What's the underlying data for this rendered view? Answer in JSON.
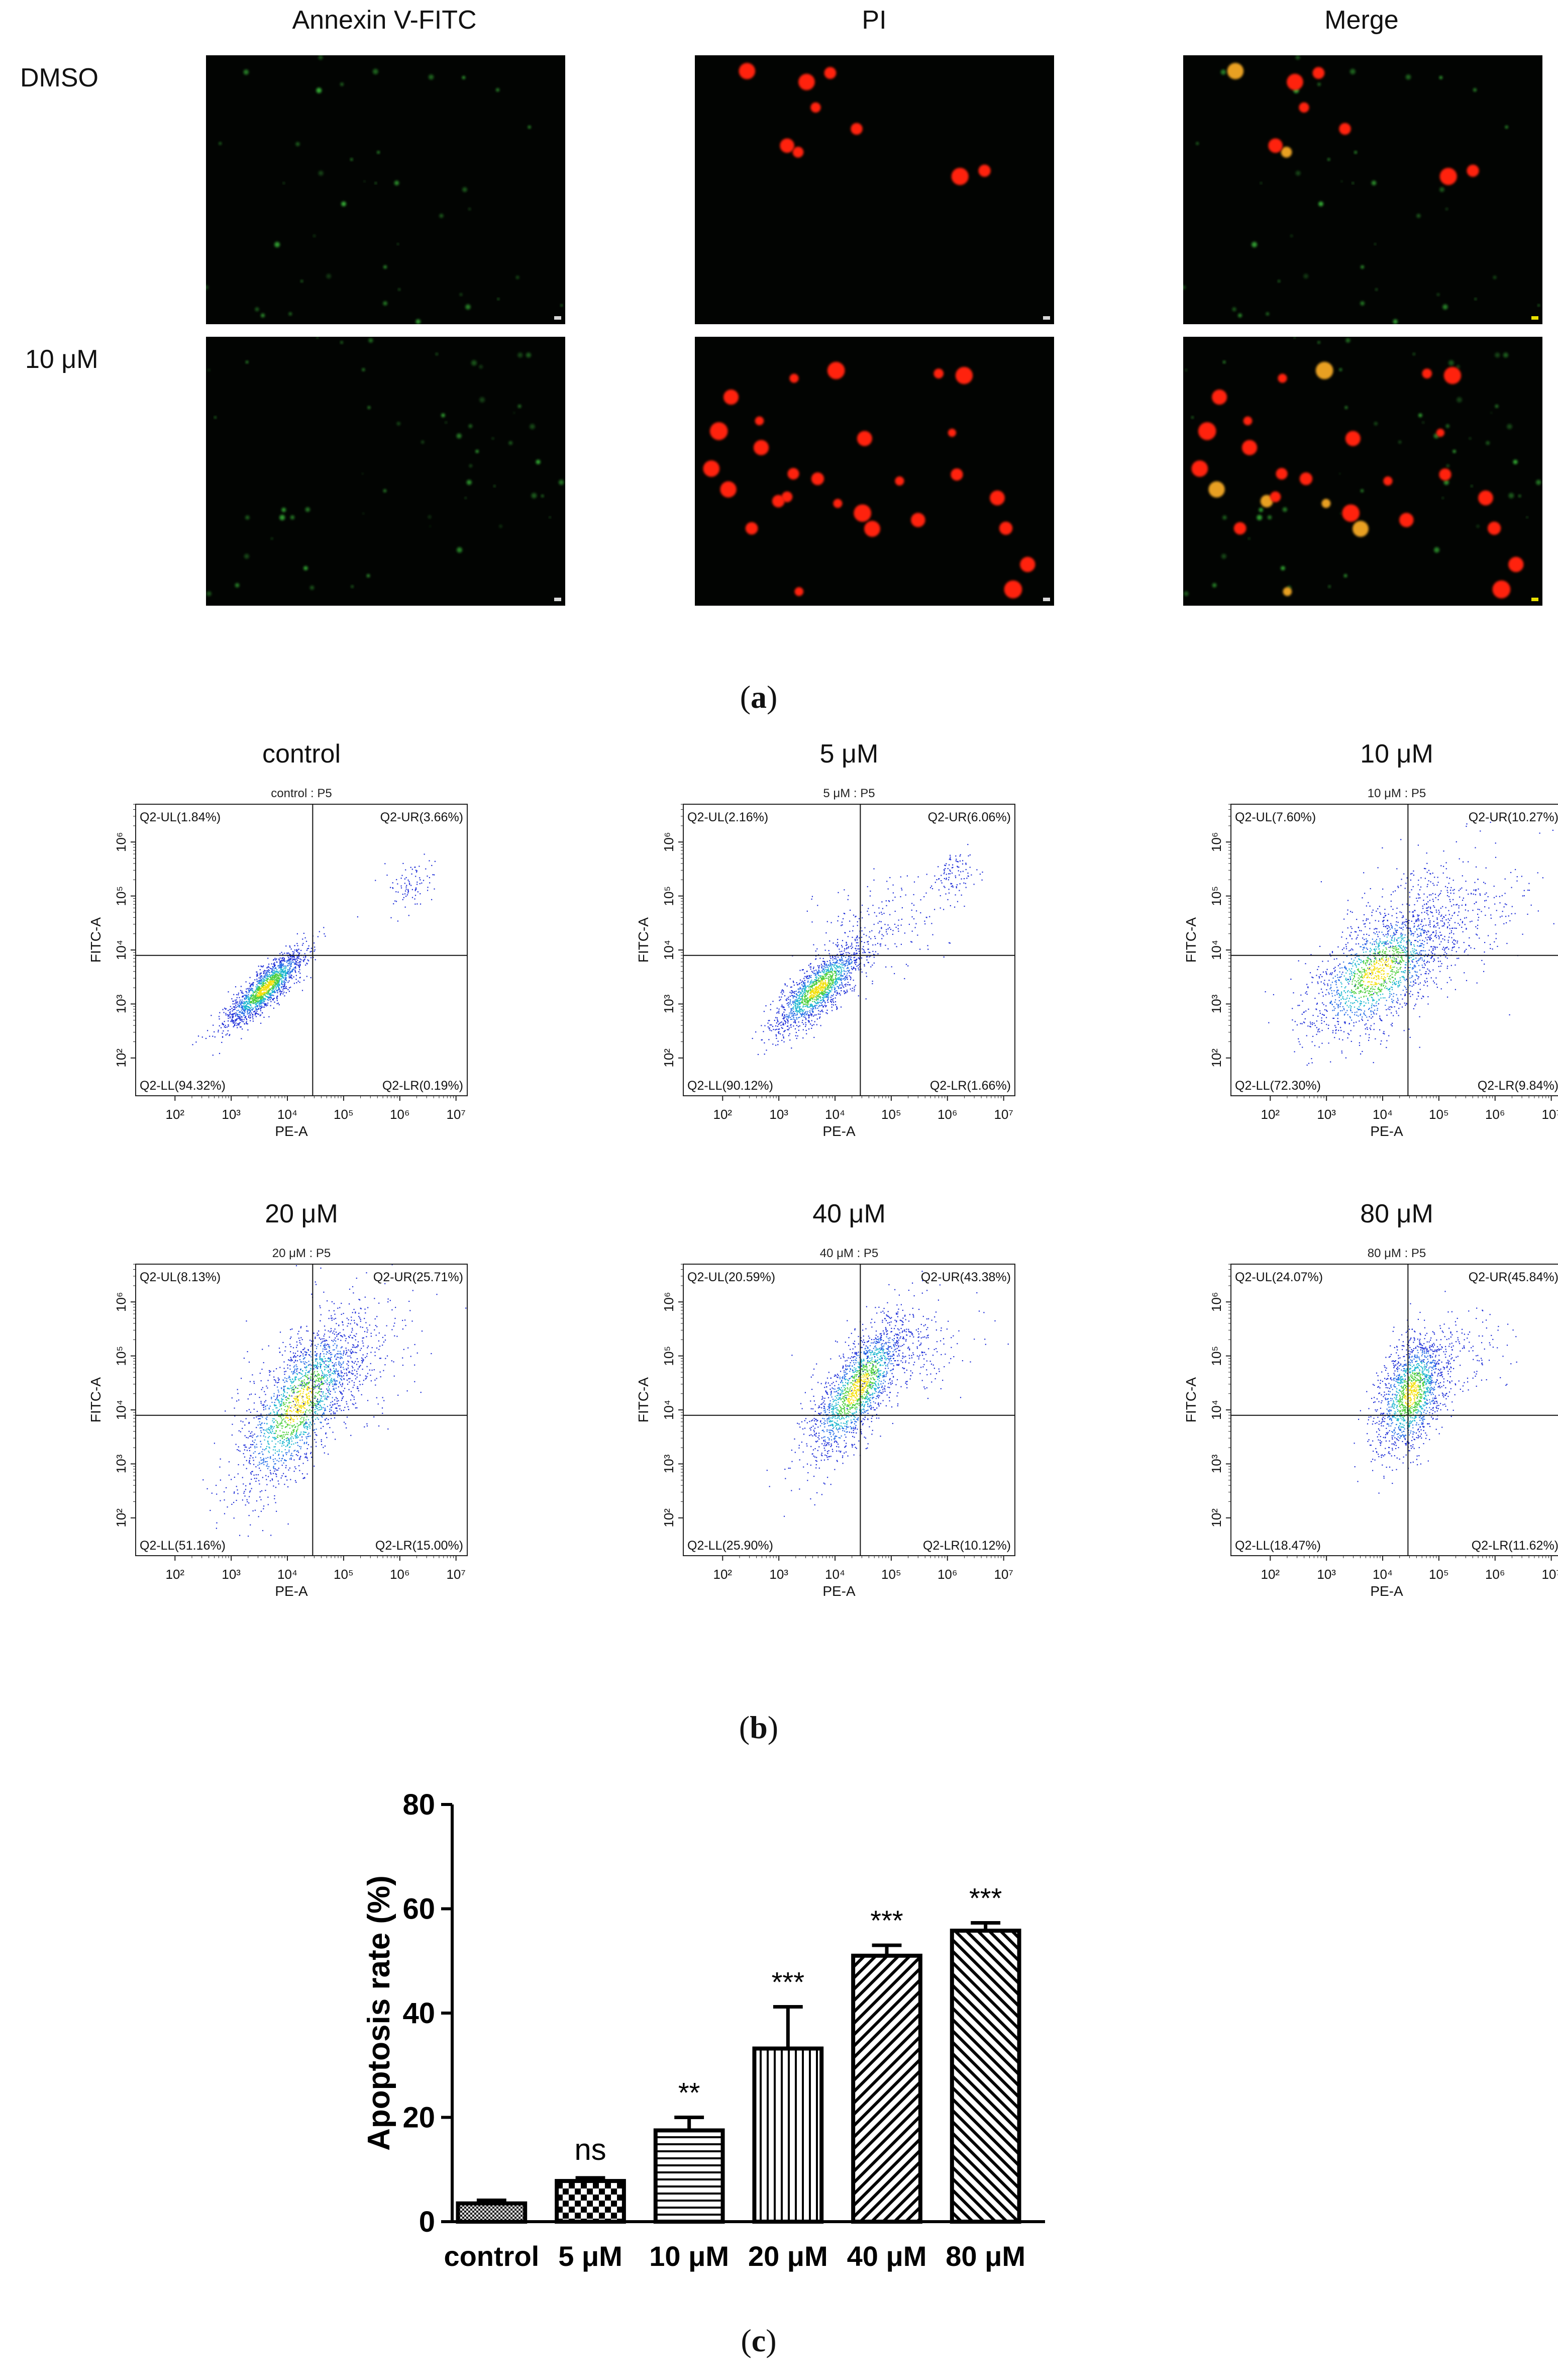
{
  "panel_a": {
    "columns": [
      "Annexin V-FITC",
      "PI",
      "Merge"
    ],
    "rows": [
      "DMSO",
      "10 μM"
    ],
    "label_open": "(",
    "label_letter": "a",
    "label_close": ")"
  },
  "panel_b": {
    "plots": [
      {
        "title": "control",
        "subtitle": "control : P5",
        "UL": "Q2-UL(1.84%)",
        "UR": "Q2-UR(3.66%)",
        "LL": "Q2-LL(94.32%)",
        "LR": "Q2-LR(0.19%)"
      },
      {
        "title": "5 μM",
        "subtitle": "5 μM : P5",
        "UL": "Q2-UL(2.16%)",
        "UR": "Q2-UR(6.06%)",
        "LL": "Q2-LL(90.12%)",
        "LR": "Q2-LR(1.66%)"
      },
      {
        "title": "10 μM",
        "subtitle": "10 μM : P5",
        "UL": "Q2-UL(7.60%)",
        "UR": "Q2-UR(10.27%)",
        "LL": "Q2-LL(72.30%)",
        "LR": "Q2-LR(9.84%)"
      },
      {
        "title": "20 μM",
        "subtitle": "20 μM : P5",
        "UL": "Q2-UL(8.13%)",
        "UR": "Q2-UR(25.71%)",
        "LL": "Q2-LL(51.16%)",
        "LR": "Q2-LR(15.00%)"
      },
      {
        "title": "40 μM",
        "subtitle": "40 μM : P5",
        "UL": "Q2-UL(20.59%)",
        "UR": "Q2-UR(43.38%)",
        "LL": "Q2-LL(25.90%)",
        "LR": "Q2-LR(10.12%)"
      },
      {
        "title": "80 μM",
        "subtitle": "80 μM : P5",
        "UL": "Q2-UL(24.07%)",
        "UR": "Q2-UR(45.84%)",
        "LL": "Q2-LL(18.47%)",
        "LR": "Q2-LR(11.62%)"
      }
    ],
    "xlabel": "PE-A",
    "ylabel": "FITC-A",
    "x_ticks": [
      "10²",
      "10³",
      "10⁴",
      "10⁵",
      "10⁶",
      "10⁷"
    ],
    "y_ticks": [
      "10²",
      "10³",
      "10⁴",
      "10⁵",
      "10⁶"
    ],
    "label_open": "(",
    "label_letter": "b",
    "label_close": ")"
  },
  "panel_c": {
    "label_open": "(",
    "label_letter": "c",
    "label_close": ")"
  },
  "chart_data": {
    "type": "bar",
    "categories": [
      "control",
      "5 μM",
      "10 μM",
      "20 μM",
      "40 μM",
      "80 μM"
    ],
    "values": [
      3.5,
      7.8,
      17.5,
      33.2,
      51.0,
      55.8
    ],
    "errors": [
      0.6,
      0.6,
      2.5,
      8.0,
      2.0,
      1.5
    ],
    "annotations": [
      "",
      "ns",
      "**",
      "***",
      "***",
      "***"
    ],
    "patterns": [
      "dense-check",
      "checker",
      "horizontal",
      "vertical",
      "diagonal-up",
      "diagonal-down"
    ],
    "ylabel": "Apoptosis rate (%)",
    "xlabel": "",
    "title": "",
    "ylim": [
      0,
      80
    ],
    "yticks": [
      0,
      20,
      40,
      60,
      80
    ]
  }
}
